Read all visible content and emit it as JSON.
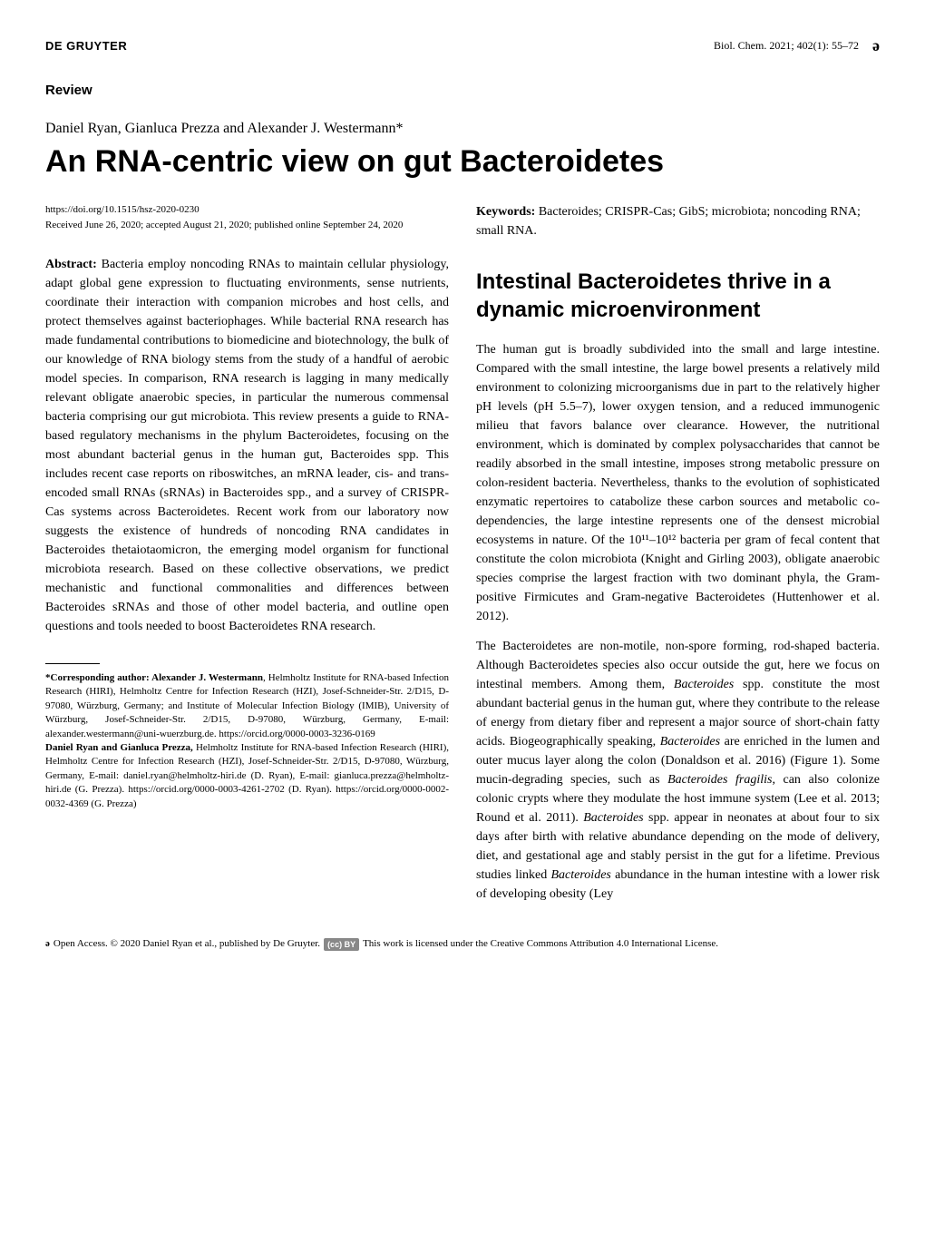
{
  "header": {
    "publisher": "DE GRUYTER",
    "citation": "Biol. Chem. 2021; 402(1): 55–72",
    "oa_icon": "ə"
  },
  "review_label": "Review",
  "authors": "Daniel Ryan, Gianluca Prezza and Alexander J. Westermann*",
  "title": "An RNA-centric view on gut Bacteroidetes",
  "doi": "https://doi.org/10.1515/hsz-2020-0230",
  "dates": "Received June 26, 2020; accepted August 21, 2020; published online September 24, 2020",
  "abstract": {
    "label": "Abstract:",
    "text": "Bacteria employ noncoding RNAs to maintain cellular physiology, adapt global gene expression to fluctuating environments, sense nutrients, coordinate their interaction with companion microbes and host cells, and protect themselves against bacteriophages. While bacterial RNA research has made fundamental contributions to biomedicine and biotechnology, the bulk of our knowledge of RNA biology stems from the study of a handful of aerobic model species. In comparison, RNA research is lagging in many medically relevant obligate anaerobic species, in particular the numerous commensal bacteria comprising our gut microbiota. This review presents a guide to RNA-based regulatory mechanisms in the phylum Bacteroidetes, focusing on the most abundant bacterial genus in the human gut, Bacteroides spp. This includes recent case reports on riboswitches, an mRNA leader, cis- and trans-encoded small RNAs (sRNAs) in Bacteroides spp., and a survey of CRISPR-Cas systems across Bacteroidetes. Recent work from our laboratory now suggests the existence of hundreds of noncoding RNA candidates in Bacteroides thetaiotaomicron, the emerging model organism for functional microbiota research. Based on these collective observations, we predict mechanistic and functional commonalities and differences between Bacteroides sRNAs and those of other model bacteria, and outline open questions and tools needed to boost Bacteroidetes RNA research."
  },
  "corresponding": {
    "author_label": "*Corresponding author: Alexander J. Westermann",
    "author_affil": ", Helmholtz Institute for RNA-based Infection Research (HIRI), Helmholtz Centre for Infection Research (HZI), Josef-Schneider-Str. 2/D15, D-97080, Würzburg, Germany; and Institute of Molecular Infection Biology (IMIB), University of Würzburg, Josef-Schneider-Str. 2/D15, D-97080, Würzburg, Germany, E-mail: alexander.westermann@uni-wuerzburg.de. https://orcid.org/0000-0003-3236-0169",
    "others_label": "Daniel Ryan and Gianluca Prezza,",
    "others_affil": " Helmholtz Institute for RNA-based Infection Research (HIRI), Helmholtz Centre for Infection Research (HZI), Josef-Schneider-Str. 2/D15, D-97080, Würzburg, Germany, E-mail: daniel.ryan@helmholtz-hiri.de (D. Ryan), E-mail: gianluca.prezza@helmholtz-hiri.de (G. Prezza). https://orcid.org/0000-0003-4261-2702 (D. Ryan). https://orcid.org/0000-0002-0032-4369 (G. Prezza)"
  },
  "keywords": {
    "label": "Keywords:",
    "text": "Bacteroides; CRISPR-Cas; GibS; microbiota; noncoding RNA; small RNA."
  },
  "section": {
    "heading": "Intestinal Bacteroidetes thrive in a dynamic microenvironment",
    "p1": "The human gut is broadly subdivided into the small and large intestine. Compared with the small intestine, the large bowel presents a relatively mild environment to colonizing microorganisms due in part to the relatively higher pH levels (pH 5.5–7), lower oxygen tension, and a reduced immunogenic milieu that favors balance over clearance. However, the nutritional environment, which is dominated by complex polysaccharides that cannot be readily absorbed in the small intestine, imposes strong metabolic pressure on colon-resident bacteria. Nevertheless, thanks to the evolution of sophisticated enzymatic repertoires to catabolize these carbon sources and metabolic co-dependencies, the large intestine represents one of the densest microbial ecosystems in nature. Of the 10¹¹–10¹² bacteria per gram of fecal content that constitute the colon microbiota (Knight and Girling 2003), obligate anaerobic species comprise the largest fraction with two dominant phyla, the Gram-positive Firmicutes and Gram-negative Bacteroidetes (Huttenhower et al. 2012).",
    "p2": "The Bacteroidetes are non-motile, non-spore forming, rod-shaped bacteria. Although Bacteroidetes species also occur outside the gut, here we focus on intestinal members. Among them, Bacteroides spp. constitute the most abundant bacterial genus in the human gut, where they contribute to the release of energy from dietary fiber and represent a major source of short-chain fatty acids. Biogeographically speaking, Bacteroides are enriched in the lumen and outer mucus layer along the colon (Donaldson et al. 2016) (Figure 1). Some mucin-degrading species, such as Bacteroides fragilis, can also colonize colonic crypts where they modulate the host immune system (Lee et al. 2013; Round et al. 2011). Bacteroides spp. appear in neonates at about four to six days after birth with relative abundance depending on the mode of delivery, diet, and gestational age and stably persist in the gut for a lifetime. Previous studies linked Bacteroides abundance in the human intestine with a lower risk of developing obesity (Ley"
  },
  "footer": {
    "oa_text": "Open Access. © 2020 Daniel Ryan et al., published by De Gruyter.",
    "cc_label": "(cc) BY",
    "license_text": "This work is licensed under the Creative Commons Attribution 4.0 International License."
  }
}
